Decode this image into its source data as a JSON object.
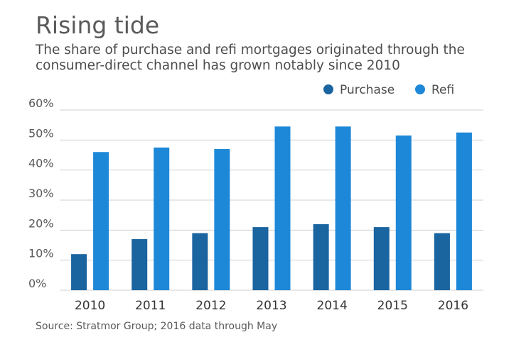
{
  "title": "Rising tide",
  "subtitle": "The share of purchase and refi mortgages originated through the consumer-direct channel has grown notably since 2010",
  "source": "Source: Stratmor Group; 2016 data through May",
  "colors": {
    "purchase": "#1a64a0",
    "refi": "#1e88d8",
    "grid": "#d0d0d0",
    "text": "#595959"
  },
  "chart_data": {
    "type": "bar",
    "title": "Rising tide",
    "xlabel": "",
    "ylabel": "",
    "ylim": [
      0,
      60
    ],
    "yticks": [
      "0%",
      "10%",
      "20%",
      "30%",
      "40%",
      "50%",
      "60%"
    ],
    "ytick_values": [
      0,
      10,
      20,
      30,
      40,
      50,
      60
    ],
    "grid": true,
    "legend": "top-right",
    "categories": [
      "2010",
      "2011",
      "2012",
      "2013",
      "2014",
      "2015",
      "2016"
    ],
    "series": [
      {
        "name": "Purchase",
        "values": [
          12,
          17,
          19,
          21,
          22,
          21,
          19
        ]
      },
      {
        "name": "Refi",
        "values": [
          46,
          47.5,
          47,
          54.5,
          54.5,
          51.5,
          52.5
        ]
      }
    ]
  }
}
